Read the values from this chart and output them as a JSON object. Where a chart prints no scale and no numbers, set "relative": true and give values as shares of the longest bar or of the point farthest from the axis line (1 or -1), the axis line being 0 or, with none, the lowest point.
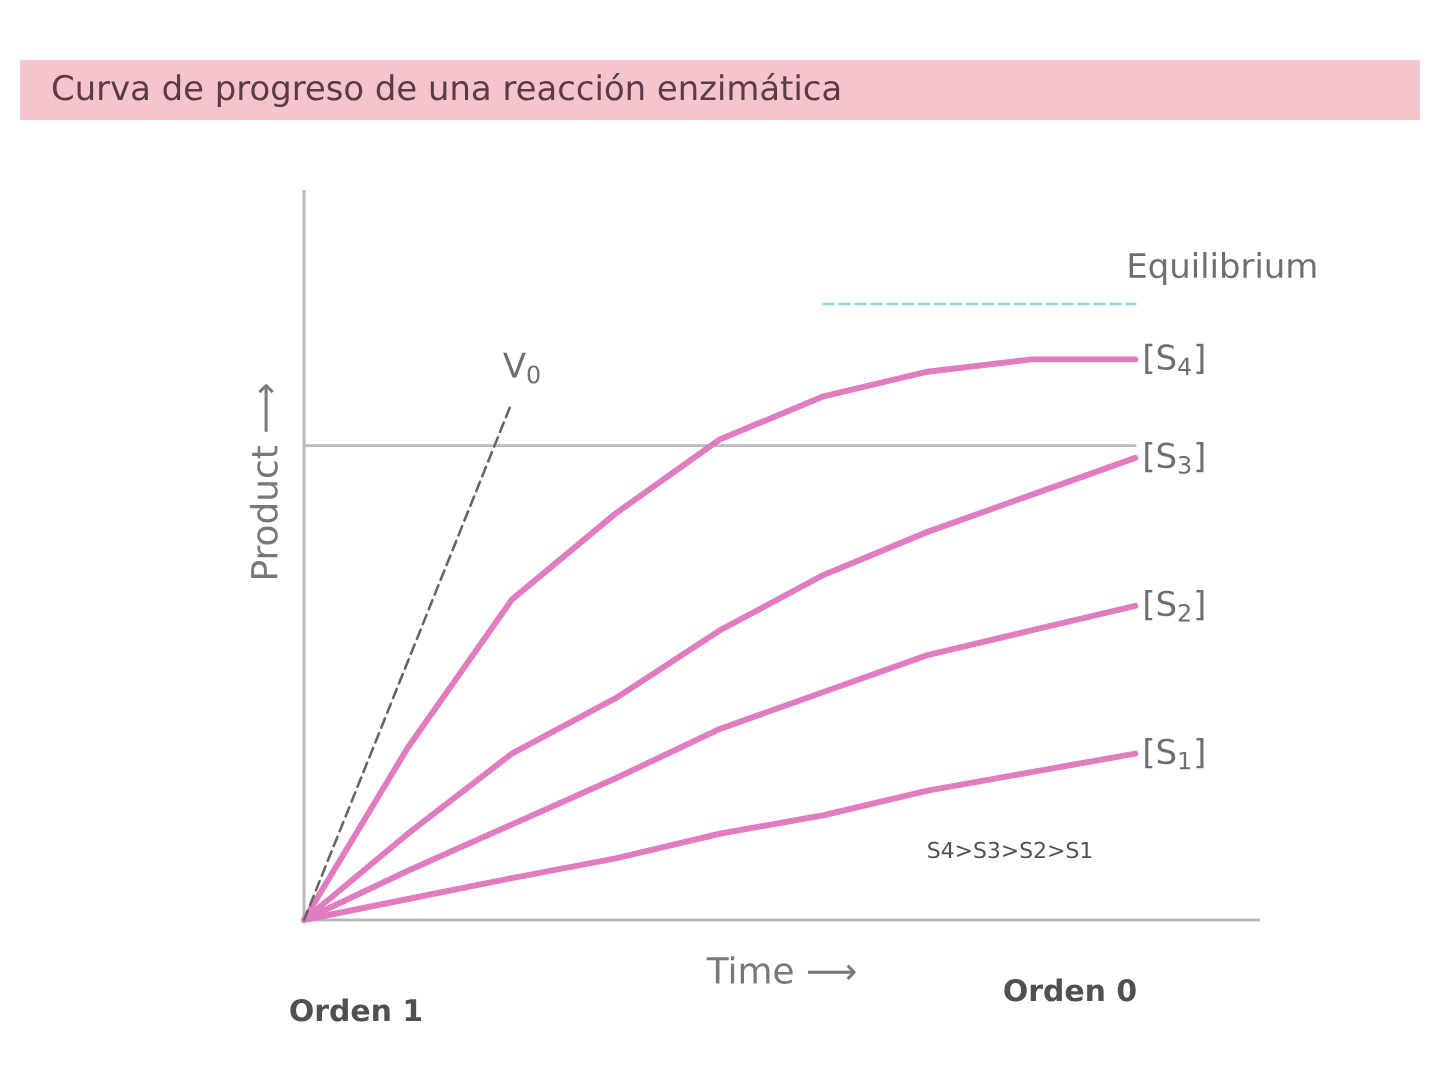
{
  "chart_data": {
    "type": "line",
    "title": "Curva de progreso de una reacción enzimática",
    "xlabel": "Time ⟶",
    "ylabel": "Product ⟶",
    "relative": true,
    "marker": "none",
    "categories": [
      null,
      null,
      null,
      null,
      null,
      null,
      null,
      null,
      null
    ],
    "series": [
      {
        "color": "#bbbbbb",
        "values": [
          0.77,
          0.77,
          0.77,
          0.77,
          0.77,
          0.77,
          0.77,
          0.77,
          0.77
        ]
      },
      {
        "name": "[S$_{4}$]",
        "color": "#e07cbf",
        "values": [
          0,
          0.28,
          0.52,
          0.66,
          0.78,
          0.85,
          0.89,
          0.91,
          0.91
        ]
      },
      {
        "name": "[S$_{3}$]",
        "color": "#e07cbf",
        "values": [
          0,
          0.14,
          0.27,
          0.36,
          0.47,
          0.56,
          0.63,
          0.69,
          0.75
        ]
      },
      {
        "name": "[S$_{2}$]",
        "color": "#e07cbf",
        "values": [
          0,
          0.08,
          0.155,
          0.23,
          0.31,
          0.37,
          0.43,
          0.47,
          0.51
        ]
      },
      {
        "name": "[S$_{1}$]",
        "color": "#e07cbf",
        "values": [
          0,
          0.034,
          0.068,
          0.1,
          0.14,
          0.17,
          0.21,
          0.24,
          0.27
        ]
      },
      {
        "name": "V$_{0}$",
        "color": "#666666",
        "line_style": "dashed",
        "values": [
          0,
          0.42,
          0.84,
          null,
          null,
          null,
          null,
          null,
          null
        ]
      },
      {
        "name": "Equilibrium",
        "color": "#8ad8d2",
        "line_style": "dashed",
        "values": [
          null,
          null,
          null,
          null,
          null,
          1,
          1,
          1,
          1
        ]
      }
    ],
    "annotations": [
      "S4>S3>S2>S1",
      "Orden 1",
      "Orden 0"
    ]
  }
}
